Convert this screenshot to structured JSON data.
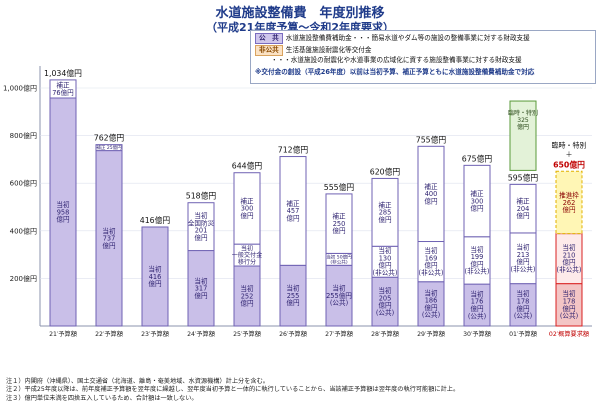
{
  "title": "水道施設整備費　年度別推移",
  "subtitle": "（平成21年度予算～令和2年度要求）",
  "legend": {
    "public_tag": "公　共",
    "public_text": "水道施設整備費補助金・・・簡易水道やダム等の施設の整備事業に対する財政支援",
    "nonpublic_tag": "非公共",
    "nonpublic_text": "生活基盤施設耐震化等交付金",
    "nonpublic_text2": "・・・水道施設の耐震化や水道事業の広域化に資する施設整備事業に対する財政支援",
    "note": "※交付金の創設（平成26年度）以前は当初予算、補正予算ともに水道施設整備費補助金で対応"
  },
  "notes": [
    "注１）内閣府（沖縄県）、国土交通省（北海道、離島・奄美地域、水資源機構）計上分を含む。",
    "注２）平成25年度以降は、前年度補正予算額を翌年度に繰越し、翌年度当初予算と一体的に執行していることから、当該補正予算額は翌年度の執行可能額に計上。",
    "注３）億円単位未満を四捨五入しているため、合計額は一致しない。"
  ],
  "chart_data": {
    "type": "bar",
    "y_ticks": [
      "200億円",
      "400億円",
      "600億円",
      "800億円",
      "1,000億円"
    ],
    "ylim": [
      0,
      1100
    ],
    "groups": [
      {
        "label": "21′予算額",
        "total_label": "1,034億円",
        "total": 1034,
        "segments": [
          {
            "kind": "initial",
            "value": 958,
            "lines": [
              "当初",
              "958",
              "億円"
            ]
          },
          {
            "kind": "supplement",
            "value": 76,
            "lines": [
              "補正",
              "76億円"
            ]
          }
        ]
      },
      {
        "label": "22′予算額",
        "total_label": "762億円",
        "total": 762,
        "segments": [
          {
            "kind": "initial",
            "value": 737,
            "lines": [
              "当初",
              "737",
              "億円"
            ]
          },
          {
            "kind": "supplement",
            "value": 25,
            "lines": [
              "補正 25億円"
            ]
          }
        ]
      },
      {
        "label": "23′予算額",
        "total_label": "416億円",
        "total": 416,
        "segments": [
          {
            "kind": "initial",
            "value": 416,
            "lines": [
              "当初",
              "416",
              "億円"
            ]
          }
        ]
      },
      {
        "label": "24′予算額",
        "total_label": "518億円",
        "total": 518,
        "segments": [
          {
            "kind": "initial",
            "value": 317,
            "lines": [
              "当初",
              "317",
              "億円"
            ]
          },
          {
            "kind": "supplement",
            "value": 201,
            "lines": [
              "当初",
              "全国防災",
              "201",
              "億円"
            ]
          }
        ]
      },
      {
        "label": "25′予算額",
        "total_label": "644億円",
        "total": 644,
        "segments": [
          {
            "kind": "initial",
            "value": 252,
            "lines": [
              "当初",
              "252",
              "億円"
            ]
          },
          {
            "kind": "supplement",
            "value": 92,
            "lines": [
              "当初",
              "一般交付金",
              "移行分"
            ]
          },
          {
            "kind": "supplement",
            "value": 300,
            "lines": [
              "補正",
              "300",
              "億円"
            ]
          }
        ]
      },
      {
        "label": "26′予算額",
        "total_label": "712億円",
        "total": 712,
        "segments": [
          {
            "kind": "initial",
            "value": 255,
            "lines": [
              "当初",
              "255",
              "億円"
            ]
          },
          {
            "kind": "supplement",
            "value": 457,
            "lines": [
              "補正",
              "457",
              "億円"
            ]
          }
        ]
      },
      {
        "label": "27′予算額",
        "total_label": "555億円",
        "total": 555,
        "segments": [
          {
            "kind": "initial",
            "value": 255,
            "lines": [
              "当初",
              "255億円",
              "(公共)"
            ]
          },
          {
            "kind": "supplement",
            "value": 50,
            "lines": [
              "当初 50億円",
              "(非公共)"
            ]
          },
          {
            "kind": "supplement",
            "value": 250,
            "lines": [
              "補正",
              "250",
              "億円"
            ]
          }
        ]
      },
      {
        "label": "28′予算額",
        "total_label": "620億円",
        "total": 620,
        "segments": [
          {
            "kind": "initial",
            "value": 205,
            "lines": [
              "当初",
              "205",
              "億円",
              "(公共)"
            ]
          },
          {
            "kind": "supplement",
            "value": 130,
            "lines": [
              "当初",
              "130",
              "億円",
              "(非公共)"
            ]
          },
          {
            "kind": "supplement",
            "value": 285,
            "lines": [
              "補正",
              "285",
              "億円"
            ]
          }
        ]
      },
      {
        "label": "29′予算額",
        "total_label": "755億円",
        "total": 755,
        "segments": [
          {
            "kind": "initial",
            "value": 186,
            "lines": [
              "当初",
              "186",
              "億円",
              "(公共)"
            ]
          },
          {
            "kind": "supplement",
            "value": 169,
            "lines": [
              "当初",
              "169",
              "億円",
              "(非公共)"
            ]
          },
          {
            "kind": "supplement",
            "value": 400,
            "lines": [
              "補正",
              "400",
              "億円"
            ]
          }
        ]
      },
      {
        "label": "30′予算額",
        "total_label": "675億円",
        "total": 675,
        "segments": [
          {
            "kind": "initial",
            "value": 176,
            "lines": [
              "当初",
              "176",
              "億円",
              "(公共)"
            ]
          },
          {
            "kind": "supplement",
            "value": 199,
            "lines": [
              "当初",
              "199",
              "億円",
              "(非公共)"
            ]
          },
          {
            "kind": "supplement",
            "value": 300,
            "lines": [
              "補正",
              "300",
              "億円"
            ]
          }
        ]
      },
      {
        "label": "01′予算額",
        "total_label": "595億円",
        "total": 595,
        "special_above": 325,
        "special_lines": [
          "臨時・特別",
          "325",
          "億円"
        ],
        "segments": [
          {
            "kind": "initial",
            "value": 178,
            "lines": [
              "当初",
              "178",
              "億円",
              "(公共)"
            ]
          },
          {
            "kind": "supplement",
            "value": 213,
            "lines": [
              "当初",
              "213",
              "億円",
              "(非公共)"
            ]
          },
          {
            "kind": "supplement",
            "value": 204,
            "lines": [
              "補正",
              "204",
              "億円"
            ]
          }
        ]
      },
      {
        "label": "02′概算要求額",
        "total_label": "650億円",
        "total": 650,
        "request": true,
        "top_note_lines": [
          "臨時・特別",
          "＋"
        ],
        "segments": [
          {
            "kind": "initial",
            "value": 178,
            "lines": [
              "当初",
              "178",
              "億円",
              "(公共)"
            ]
          },
          {
            "kind": "supplement",
            "value": 210,
            "lines": [
              "当初",
              "210",
              "億円",
              "(非公共)"
            ]
          },
          {
            "kind": "supplement",
            "value": 262,
            "lines": [
              "推進枠",
              "262",
              "億円"
            ]
          }
        ]
      }
    ]
  }
}
